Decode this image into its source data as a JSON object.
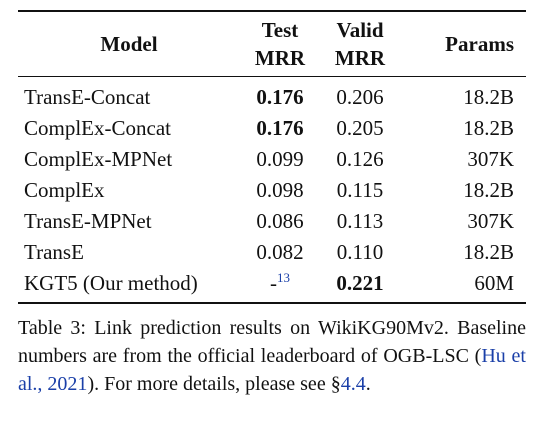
{
  "table": {
    "headers": {
      "model": "Model",
      "test_mrr_line1": "Test",
      "test_mrr_line2": "MRR",
      "valid_mrr_line1": "Valid",
      "valid_mrr_line2": "MRR",
      "params": "Params"
    },
    "rows": [
      {
        "model": "TransE-Concat",
        "test_mrr": "0.176",
        "valid_mrr": "0.206",
        "params": "18.2B"
      },
      {
        "model": "ComplEx-Concat",
        "test_mrr": "0.176",
        "valid_mrr": "0.205",
        "params": "18.2B"
      },
      {
        "model": "ComplEx-MPNet",
        "test_mrr": "0.099",
        "valid_mrr": "0.126",
        "params": "307K"
      },
      {
        "model": "ComplEx",
        "test_mrr": "0.098",
        "valid_mrr": "0.115",
        "params": "18.2B"
      },
      {
        "model": "TransE-MPNet",
        "test_mrr": "0.086",
        "valid_mrr": "0.113",
        "params": "307K"
      },
      {
        "model": "TransE",
        "test_mrr": "0.082",
        "valid_mrr": "0.110",
        "params": "18.2B"
      },
      {
        "model": "KGT5 (Our method)",
        "test_mrr": "-",
        "test_mrr_footnote": "13",
        "valid_mrr": "0.221",
        "params": "60M"
      }
    ]
  },
  "caption": {
    "part1": "Table 3: Link prediction results on WikiKG90Mv2. Baseline numbers are from the official leaderboard of OGB-LSC (",
    "citation": "Hu et al., 2021",
    "part2": "). For more details, please see §",
    "section_ref": "4.4",
    "part3": "."
  }
}
